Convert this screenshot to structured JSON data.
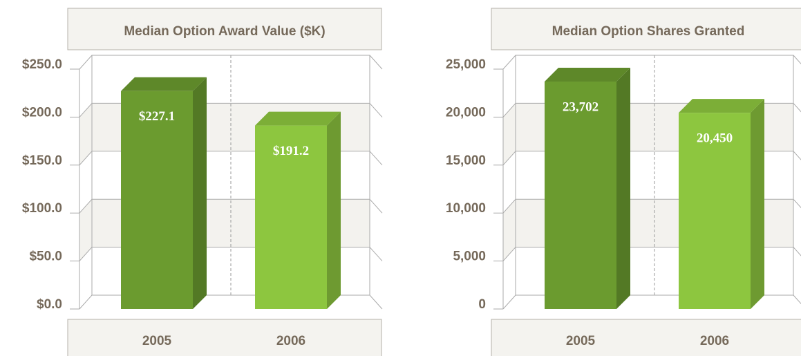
{
  "chart_data": [
    {
      "type": "bar",
      "title": "Median Option Award Value ($K)",
      "categories": [
        "2005",
        "2006"
      ],
      "values": [
        227.1,
        191.2
      ],
      "value_labels": [
        "$227.1",
        "$191.2"
      ],
      "colors": [
        "#6b9b2f",
        "#8dc63f"
      ],
      "ylim": [
        0,
        250
      ],
      "yticks": [
        {
          "value": 0,
          "label": "$0.0"
        },
        {
          "value": 50,
          "label": "$50.0"
        },
        {
          "value": 100,
          "label": "$100.0"
        },
        {
          "value": 150,
          "label": "$150.0"
        },
        {
          "value": 200,
          "label": "$200.0"
        },
        {
          "value": 250,
          "label": "$250.0"
        }
      ],
      "grid": true
    },
    {
      "type": "bar",
      "title": "Median Option Shares Granted",
      "categories": [
        "2005",
        "2006"
      ],
      "values": [
        23702,
        20450
      ],
      "value_labels": [
        "23,702",
        "20,450"
      ],
      "colors": [
        "#6b9b2f",
        "#8dc63f"
      ],
      "ylim": [
        0,
        25000
      ],
      "yticks": [
        0,
        {
          "value": 5000,
          "label": "5,000"
        },
        {
          "value": 10000,
          "label": "10,000"
        },
        {
          "value": 15000,
          "label": "15,000"
        },
        {
          "value": 20000,
          "label": "20,000"
        },
        {
          "value": 25000,
          "label": "25,000"
        }
      ],
      "grid": true
    }
  ]
}
